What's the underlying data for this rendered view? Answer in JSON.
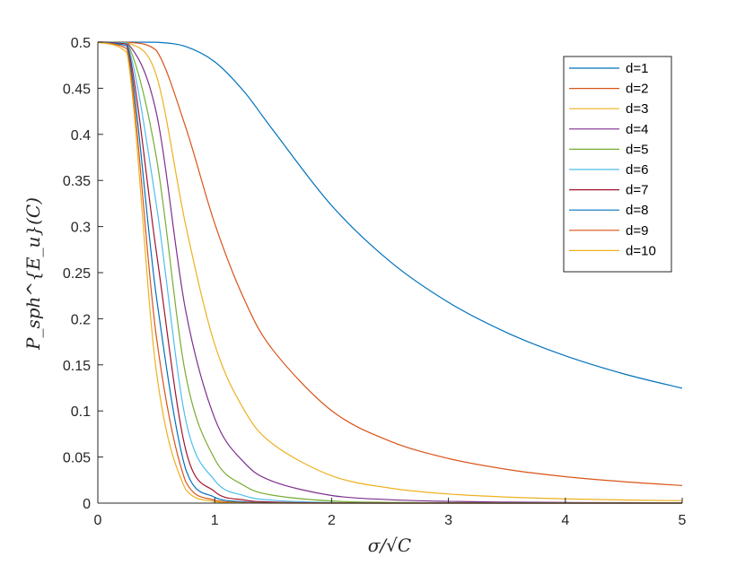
{
  "chart_data": {
    "type": "line",
    "title": "",
    "xlabel": "σ/√C",
    "ylabel": "P_sph^{E_u}(C)",
    "xlim": [
      0,
      5
    ],
    "ylim": [
      0,
      0.5
    ],
    "x_ticks": [
      "0",
      "1",
      "2",
      "3",
      "4",
      "5"
    ],
    "y_ticks": [
      "0",
      "0.05",
      "0.1",
      "0.15",
      "0.2",
      "0.25",
      "0.3",
      "0.35",
      "0.4",
      "0.45",
      "0.5"
    ],
    "grid": false,
    "legend_position": "top-right",
    "x": [
      0,
      0.25,
      0.5,
      0.75,
      1,
      1.25,
      1.5,
      2,
      2.5,
      3,
      3.5,
      4,
      4.5,
      5
    ],
    "series": [
      {
        "name": "d=1",
        "color": "#0072BD",
        "values": [
          0.5,
          0.5,
          0.4999,
          0.4953,
          0.4787,
          0.4466,
          0.4044,
          0.3228,
          0.2621,
          0.2178,
          0.1849,
          0.1598,
          0.1402,
          0.1246
        ]
      },
      {
        "name": "d=2",
        "color": "#D95319",
        "values": [
          0.5,
          0.5,
          0.4911,
          0.4084,
          0.3033,
          0.2218,
          0.1658,
          0.1003,
          0.0672,
          0.0484,
          0.0366,
          0.0287,
          0.0232,
          0.0191
        ]
      },
      {
        "name": "d=3",
        "color": "#EDB120",
        "values": [
          0.5,
          0.4999,
          0.4643,
          0.3025,
          0.1722,
          0.1015,
          0.0638,
          0.0297,
          0.0163,
          0.0099,
          0.0066,
          0.0046,
          0.0034,
          0.0026
        ]
      },
      {
        "name": "d=4",
        "color": "#7E2F8E",
        "values": [
          0.5,
          0.4998,
          0.4237,
          0.2098,
          0.092,
          0.0443,
          0.0234,
          0.0083,
          0.0037,
          0.0019,
          0.0011,
          0.0007,
          0.0005,
          0.0003
        ]
      },
      {
        "name": "d=5",
        "color": "#77AC30",
        "values": [
          0.5,
          0.4995,
          0.3756,
          0.1402,
          0.0479,
          0.0191,
          0.0085,
          0.0023,
          0.0008,
          0.0004,
          0.0002,
          0.0001,
          0.0001,
          0
        ]
      },
      {
        "name": "d=6",
        "color": "#4DBEEE",
        "values": [
          0.5,
          0.4989,
          0.3242,
          0.0915,
          0.0246,
          0.0081,
          0.0031,
          0.0006,
          0.0002,
          0.0001,
          0,
          0,
          0,
          0
        ]
      },
      {
        "name": "d=7",
        "color": "#A2142F",
        "values": [
          0.5,
          0.4977,
          0.2731,
          0.0589,
          0.0125,
          0.0034,
          0.0011,
          0.0002,
          0,
          0,
          0,
          0,
          0,
          0
        ]
      },
      {
        "name": "d=8",
        "color": "#0072BD",
        "values": [
          0.5,
          0.4957,
          0.2248,
          0.0375,
          0.0063,
          0.0014,
          0.0004,
          0,
          0,
          0,
          0,
          0,
          0,
          0
        ]
      },
      {
        "name": "d=9",
        "color": "#D95319",
        "values": [
          0.5,
          0.4926,
          0.1813,
          0.0237,
          0.0031,
          0.0006,
          0.0001,
          0,
          0,
          0,
          0,
          0,
          0,
          0
        ]
      },
      {
        "name": "d=10",
        "color": "#EDB120",
        "values": [
          0.5,
          0.4883,
          0.1436,
          0.0149,
          0.0016,
          0.0002,
          0,
          0,
          0,
          0,
          0,
          0,
          0,
          0
        ]
      }
    ]
  }
}
